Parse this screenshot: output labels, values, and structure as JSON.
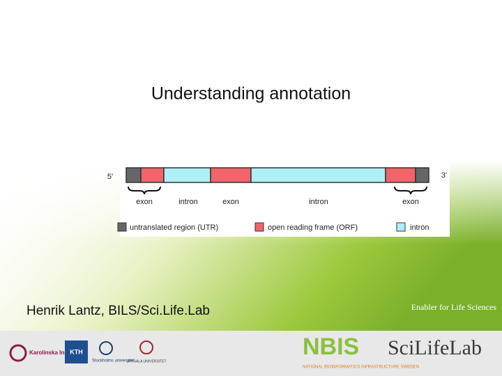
{
  "slide": {
    "title": "Understanding annotation",
    "author": "Henrik Lantz, BILS/Sci.Life.Lab",
    "tagline": "Enabler for Life Sciences",
    "diagram": {
      "five_prime": "5'",
      "three_prime": "3'",
      "labels": [
        "exon",
        "intron",
        "exon",
        "intron",
        "exon"
      ],
      "legend": [
        "untranslated region (UTR)",
        "open reading frame (ORF)",
        "intron"
      ]
    },
    "logos": {
      "karolinska": "Karolinska Institutet",
      "kth": "KTH",
      "stockholm": "Stockholms universitet",
      "uppsala": "UPPSALA UNIVERSITET",
      "nbis": "NBIS",
      "nbis_sub": "NATIONAL BIOINFORMATICS INFRASTRUCTURE SWEDEN",
      "scilifelab": "SciLifeLab"
    }
  }
}
